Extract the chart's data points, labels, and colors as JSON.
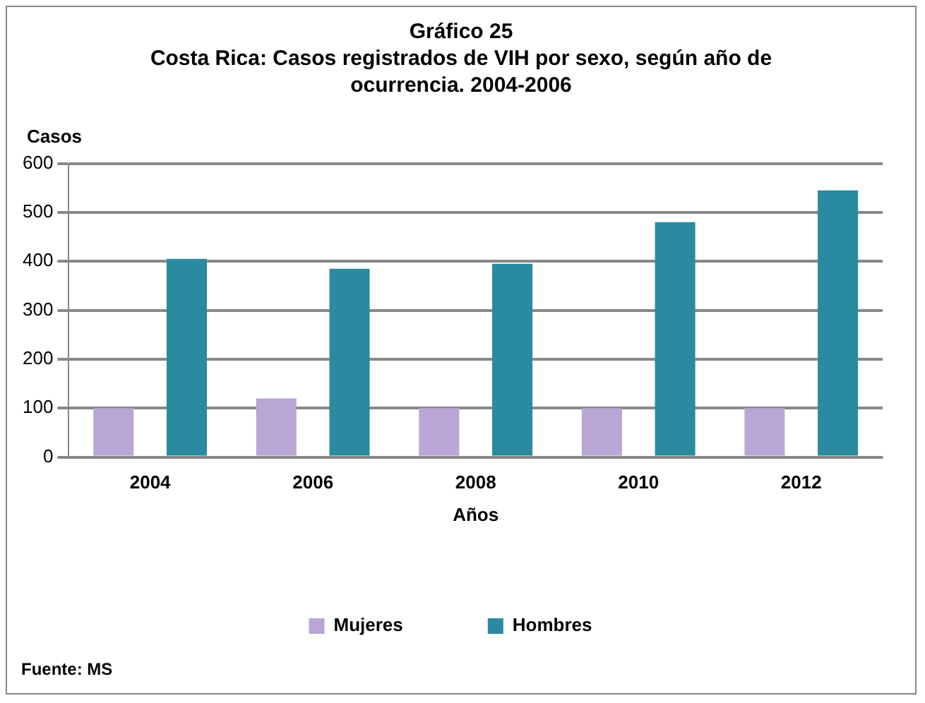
{
  "chart_data": {
    "type": "bar",
    "title": "Gráfico 25",
    "subtitle": "Costa Rica: Casos registrados de VIH por sexo, según año de ocurrencia. 2004-2006",
    "xlabel": "Años",
    "ylabel": "Casos",
    "annotations": [
      "Fuente: MS"
    ],
    "categories": [
      "2004",
      "2006",
      "2008",
      "2010",
      "2012"
    ],
    "series": [
      {
        "name": "Mujeres",
        "color": "#b9a6d6",
        "values": [
          100,
          120,
          100,
          100,
          100
        ]
      },
      {
        "name": "Hombres",
        "color": "#2a8aa0",
        "values": [
          405,
          385,
          395,
          480,
          545
        ]
      }
    ],
    "ylim": [
      0,
      600
    ],
    "yticks": [
      0,
      100,
      200,
      300,
      400,
      500,
      600
    ],
    "grid": "y",
    "legend": "bottom"
  }
}
